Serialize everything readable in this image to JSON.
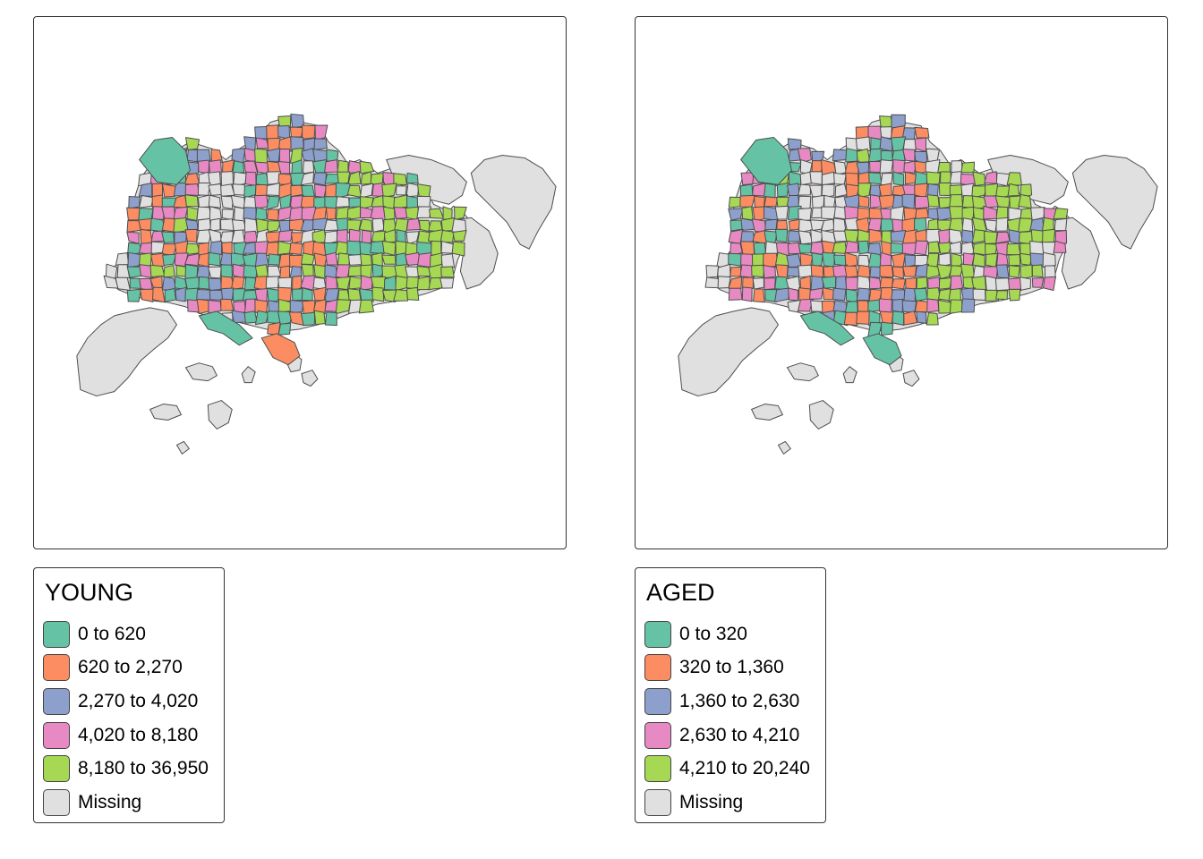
{
  "colors": {
    "c1": "#66c2a5",
    "c2": "#fc8d62",
    "c3": "#8da0cb",
    "c4": "#e78ac3",
    "c5": "#a6d854",
    "missing": "#e0e0e0",
    "border": "#4d4d4d"
  },
  "maps": [
    {
      "id": "left",
      "legend": {
        "title": "YOUNG",
        "items": [
          {
            "label": "0 to 620",
            "color": "#66c2a5"
          },
          {
            "label": "620 to 2,270",
            "color": "#fc8d62"
          },
          {
            "label": "2,270 to 4,020",
            "color": "#8da0cb"
          },
          {
            "label": "4,020 to 8,180",
            "color": "#e78ac3"
          },
          {
            "label": "8,180 to 36,950",
            "color": "#a6d854"
          },
          {
            "label": "Missing",
            "color": "#e0e0e0"
          }
        ]
      }
    },
    {
      "id": "right",
      "legend": {
        "title": "AGED",
        "items": [
          {
            "label": "0 to 320",
            "color": "#66c2a5"
          },
          {
            "label": "320 to 1,360",
            "color": "#fc8d62"
          },
          {
            "label": "1,360 to 2,630",
            "color": "#8da0cb"
          },
          {
            "label": "2,630 to 4,210",
            "color": "#e78ac3"
          },
          {
            "label": "4,210 to 20,240",
            "color": "#a6d854"
          },
          {
            "label": "Missing",
            "color": "#e0e0e0"
          }
        ]
      }
    }
  ]
}
